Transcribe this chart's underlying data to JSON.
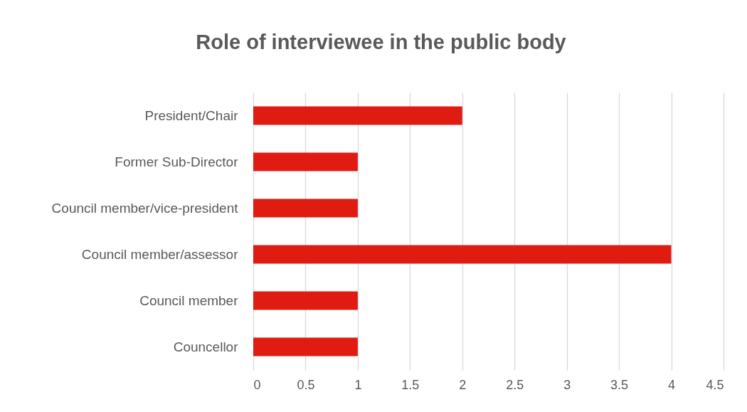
{
  "chart_data": {
    "type": "bar",
    "orientation": "horizontal",
    "title": "Role of interviewee in the public body",
    "categories": [
      "President/Chair",
      "Former Sub-Director",
      "Council member/vice-president",
      "Council member/assessor",
      "Council member",
      "Councellor"
    ],
    "values": [
      2,
      1,
      1,
      4,
      1,
      1
    ],
    "color": "#e01b12",
    "xlim": [
      0,
      4.5
    ],
    "xticks": [
      0,
      0.5,
      1,
      1.5,
      2,
      2.5,
      3,
      3.5,
      4,
      4.5
    ],
    "grid": "x"
  }
}
